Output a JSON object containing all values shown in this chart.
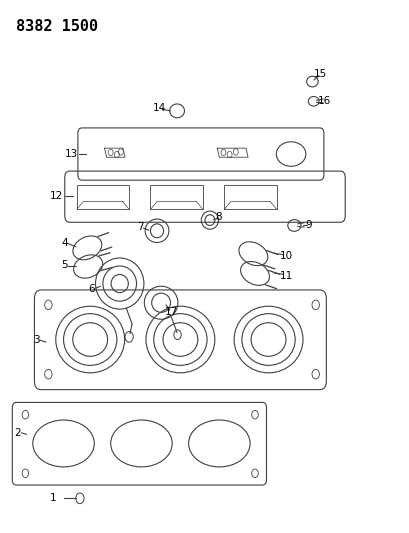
{
  "title": "8382 1500",
  "bg_color": "#ffffff",
  "line_color": "#404040",
  "label_color": "#000000",
  "title_fontsize": 11,
  "label_fontsize": 7.5
}
